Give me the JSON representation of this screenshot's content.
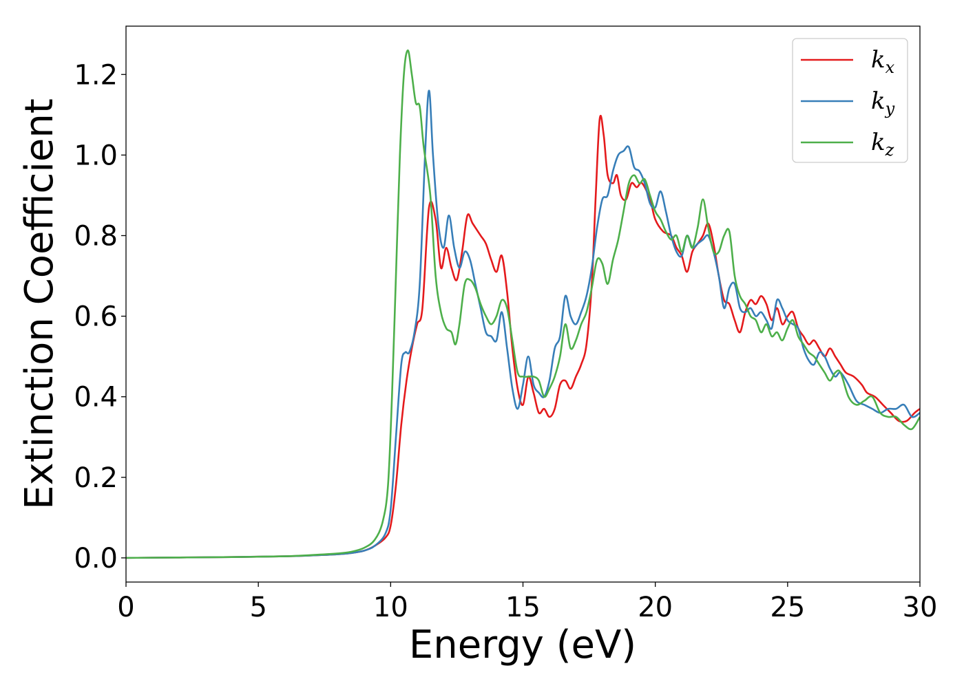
{
  "chart_data": {
    "type": "line",
    "title": "",
    "xlabel": "Energy (eV)",
    "ylabel": "Extinction Coefficient",
    "xlim": [
      0,
      30
    ],
    "ylim": [
      -0.06,
      1.32
    ],
    "xticks": [
      0,
      5,
      10,
      15,
      20,
      25,
      30
    ],
    "xtick_labels": [
      "0",
      "5",
      "10",
      "15",
      "20",
      "25",
      "30"
    ],
    "yticks": [
      0.0,
      0.2,
      0.4,
      0.6,
      0.8,
      1.0,
      1.2
    ],
    "ytick_labels": [
      "0.0",
      "0.2",
      "0.4",
      "0.6",
      "0.8",
      "1.0",
      "1.2"
    ],
    "grid": false,
    "legend_position": "top-right",
    "series": [
      {
        "name": "k_x",
        "legend_base": "k",
        "legend_sub": "x",
        "color": "#e41a1c",
        "x": [
          0,
          2,
          4,
          6,
          7,
          8,
          8.5,
          9,
          9.4,
          9.8,
          10.0,
          10.2,
          10.4,
          10.6,
          10.8,
          11.0,
          11.2,
          11.45,
          11.7,
          11.9,
          12.1,
          12.3,
          12.5,
          12.7,
          12.9,
          13.1,
          13.4,
          13.6,
          13.8,
          14.0,
          14.2,
          14.4,
          14.6,
          14.8,
          15.0,
          15.2,
          15.4,
          15.6,
          15.8,
          16.0,
          16.2,
          16.4,
          16.6,
          16.8,
          17.0,
          17.2,
          17.4,
          17.6,
          17.75,
          17.9,
          18.05,
          18.2,
          18.4,
          18.55,
          18.7,
          18.9,
          19.1,
          19.3,
          19.5,
          19.8,
          20.0,
          20.3,
          20.6,
          20.8,
          21.0,
          21.2,
          21.4,
          21.6,
          21.8,
          22.0,
          22.2,
          22.4,
          22.6,
          22.8,
          23.0,
          23.2,
          23.4,
          23.6,
          23.8,
          24.0,
          24.2,
          24.4,
          24.6,
          24.8,
          25.0,
          25.2,
          25.4,
          25.6,
          25.8,
          26.0,
          26.2,
          26.4,
          26.6,
          26.8,
          27.0,
          27.2,
          27.5,
          27.8,
          28.0,
          28.3,
          28.6,
          28.9,
          29.2,
          29.5,
          29.8,
          30.0
        ],
        "y": [
          0.0,
          0.001,
          0.002,
          0.004,
          0.006,
          0.009,
          0.012,
          0.018,
          0.03,
          0.05,
          0.08,
          0.18,
          0.33,
          0.44,
          0.52,
          0.58,
          0.62,
          0.87,
          0.84,
          0.72,
          0.77,
          0.72,
          0.69,
          0.76,
          0.85,
          0.83,
          0.8,
          0.78,
          0.74,
          0.71,
          0.75,
          0.66,
          0.52,
          0.42,
          0.38,
          0.45,
          0.41,
          0.36,
          0.37,
          0.35,
          0.37,
          0.43,
          0.44,
          0.42,
          0.45,
          0.48,
          0.53,
          0.68,
          0.9,
          1.09,
          1.05,
          0.95,
          0.93,
          0.95,
          0.9,
          0.89,
          0.93,
          0.92,
          0.93,
          0.89,
          0.84,
          0.81,
          0.8,
          0.77,
          0.75,
          0.71,
          0.76,
          0.78,
          0.8,
          0.83,
          0.78,
          0.7,
          0.64,
          0.63,
          0.59,
          0.56,
          0.61,
          0.64,
          0.63,
          0.65,
          0.63,
          0.59,
          0.62,
          0.58,
          0.6,
          0.61,
          0.57,
          0.55,
          0.53,
          0.54,
          0.52,
          0.5,
          0.52,
          0.5,
          0.48,
          0.46,
          0.45,
          0.43,
          0.41,
          0.4,
          0.38,
          0.36,
          0.34,
          0.34,
          0.36,
          0.37
        ]
      },
      {
        "name": "k_y",
        "legend_base": "k",
        "legend_sub": "y",
        "color": "#377eb8",
        "x": [
          0,
          2,
          4,
          6,
          7,
          8,
          8.5,
          9,
          9.4,
          9.8,
          10.0,
          10.2,
          10.4,
          10.55,
          10.7,
          10.9,
          11.1,
          11.3,
          11.45,
          11.6,
          11.8,
          12.0,
          12.2,
          12.4,
          12.6,
          12.8,
          13.0,
          13.2,
          13.4,
          13.6,
          13.8,
          14.0,
          14.2,
          14.4,
          14.6,
          14.8,
          15.0,
          15.2,
          15.4,
          15.6,
          15.8,
          16.0,
          16.2,
          16.4,
          16.6,
          16.8,
          17.0,
          17.2,
          17.4,
          17.6,
          17.8,
          18.0,
          18.2,
          18.4,
          18.6,
          18.8,
          19.0,
          19.2,
          19.4,
          19.6,
          19.8,
          20.0,
          20.2,
          20.4,
          20.6,
          20.8,
          21.0,
          21.2,
          21.4,
          21.6,
          21.8,
          22.0,
          22.2,
          22.4,
          22.6,
          22.8,
          23.0,
          23.2,
          23.4,
          23.6,
          23.8,
          24.0,
          24.2,
          24.4,
          24.6,
          24.8,
          25.0,
          25.2,
          25.4,
          25.6,
          25.8,
          26.0,
          26.2,
          26.4,
          26.6,
          26.8,
          27.0,
          27.3,
          27.6,
          27.9,
          28.2,
          28.5,
          28.8,
          29.1,
          29.4,
          29.7,
          30.0
        ],
        "y": [
          0.0,
          0.001,
          0.002,
          0.004,
          0.006,
          0.009,
          0.012,
          0.018,
          0.03,
          0.06,
          0.12,
          0.3,
          0.48,
          0.51,
          0.51,
          0.56,
          0.68,
          1.0,
          1.16,
          1.0,
          0.83,
          0.77,
          0.85,
          0.77,
          0.72,
          0.76,
          0.74,
          0.68,
          0.62,
          0.56,
          0.55,
          0.54,
          0.61,
          0.52,
          0.42,
          0.37,
          0.43,
          0.5,
          0.43,
          0.41,
          0.4,
          0.44,
          0.52,
          0.55,
          0.65,
          0.6,
          0.58,
          0.61,
          0.65,
          0.72,
          0.82,
          0.89,
          0.9,
          0.96,
          1.0,
          1.01,
          1.02,
          0.97,
          0.96,
          0.93,
          0.88,
          0.87,
          0.91,
          0.86,
          0.8,
          0.76,
          0.75,
          0.8,
          0.77,
          0.78,
          0.79,
          0.8,
          0.76,
          0.7,
          0.62,
          0.67,
          0.68,
          0.62,
          0.61,
          0.62,
          0.6,
          0.61,
          0.59,
          0.57,
          0.64,
          0.62,
          0.59,
          0.58,
          0.57,
          0.52,
          0.49,
          0.48,
          0.51,
          0.5,
          0.47,
          0.45,
          0.46,
          0.43,
          0.39,
          0.38,
          0.37,
          0.36,
          0.37,
          0.37,
          0.38,
          0.35,
          0.36
        ]
      },
      {
        "name": "k_z",
        "legend_base": "k",
        "legend_sub": "z",
        "color": "#4daf4a",
        "x": [
          0,
          2,
          4,
          6,
          7,
          8,
          8.5,
          9,
          9.4,
          9.7,
          9.9,
          10.05,
          10.2,
          10.35,
          10.5,
          10.65,
          10.8,
          10.95,
          11.1,
          11.25,
          11.5,
          11.7,
          11.9,
          12.1,
          12.3,
          12.45,
          12.6,
          12.8,
          13.0,
          13.2,
          13.4,
          13.6,
          13.8,
          14.0,
          14.2,
          14.4,
          14.6,
          14.8,
          15.0,
          15.2,
          15.4,
          15.6,
          15.8,
          16.0,
          16.2,
          16.4,
          16.6,
          16.8,
          17.0,
          17.2,
          17.4,
          17.6,
          17.8,
          18.0,
          18.2,
          18.4,
          18.6,
          18.8,
          19.0,
          19.2,
          19.4,
          19.6,
          19.8,
          20.0,
          20.2,
          20.4,
          20.6,
          20.8,
          21.0,
          21.2,
          21.4,
          21.6,
          21.8,
          22.0,
          22.2,
          22.4,
          22.6,
          22.8,
          23.0,
          23.2,
          23.4,
          23.6,
          23.8,
          24.0,
          24.2,
          24.4,
          24.6,
          24.8,
          25.0,
          25.2,
          25.4,
          25.6,
          25.8,
          26.0,
          26.2,
          26.4,
          26.6,
          26.8,
          27.0,
          27.3,
          27.6,
          27.9,
          28.2,
          28.5,
          28.8,
          29.1,
          29.4,
          29.7,
          30.0
        ],
        "y": [
          0.0,
          0.001,
          0.002,
          0.004,
          0.007,
          0.011,
          0.015,
          0.025,
          0.045,
          0.09,
          0.18,
          0.4,
          0.7,
          1.0,
          1.2,
          1.26,
          1.2,
          1.13,
          1.12,
          1.02,
          0.9,
          0.7,
          0.61,
          0.57,
          0.56,
          0.53,
          0.58,
          0.68,
          0.69,
          0.67,
          0.63,
          0.6,
          0.58,
          0.6,
          0.64,
          0.62,
          0.54,
          0.46,
          0.45,
          0.45,
          0.45,
          0.44,
          0.4,
          0.42,
          0.45,
          0.5,
          0.58,
          0.52,
          0.54,
          0.58,
          0.61,
          0.67,
          0.74,
          0.73,
          0.68,
          0.74,
          0.79,
          0.86,
          0.93,
          0.95,
          0.93,
          0.94,
          0.9,
          0.86,
          0.84,
          0.81,
          0.79,
          0.8,
          0.76,
          0.8,
          0.77,
          0.82,
          0.89,
          0.82,
          0.76,
          0.76,
          0.8,
          0.81,
          0.7,
          0.65,
          0.63,
          0.6,
          0.59,
          0.56,
          0.58,
          0.55,
          0.56,
          0.54,
          0.57,
          0.59,
          0.55,
          0.53,
          0.51,
          0.5,
          0.48,
          0.46,
          0.44,
          0.46,
          0.46,
          0.4,
          0.38,
          0.39,
          0.4,
          0.36,
          0.35,
          0.35,
          0.33,
          0.32,
          0.35
        ]
      }
    ]
  }
}
